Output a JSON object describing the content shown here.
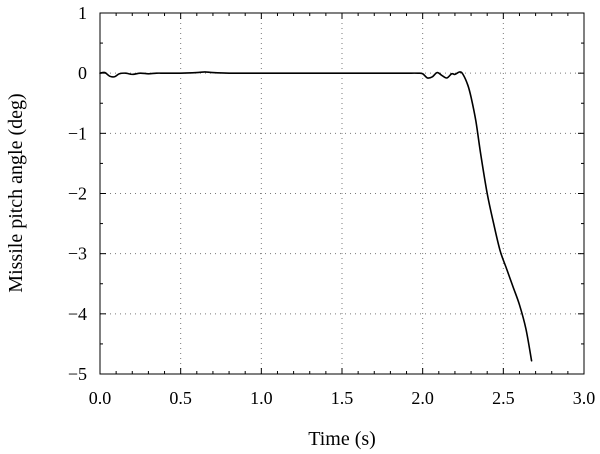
{
  "chart_data": {
    "type": "line",
    "title": "",
    "xlabel": "Time (s)",
    "ylabel": "Missile pitch angle (deg)",
    "xlim": [
      0.0,
      3.0
    ],
    "ylim": [
      -5,
      1
    ],
    "x_ticks": [
      0.0,
      0.5,
      1.0,
      1.5,
      2.0,
      2.5,
      3.0
    ],
    "x_tick_labels": [
      "0.0",
      "0.5",
      "1.0",
      "1.5",
      "2.0",
      "2.5",
      "3.0"
    ],
    "y_ticks": [
      1,
      0,
      -1,
      -2,
      -3,
      -4,
      -5
    ],
    "y_tick_labels": [
      "1",
      "0",
      "−1",
      "−2",
      "−3",
      "−4",
      "−5"
    ],
    "grid": true,
    "colors": {
      "series": "#000000",
      "grid": "#7a7a7a"
    },
    "series": [
      {
        "x": [
          0.0,
          0.03,
          0.06,
          0.09,
          0.12,
          0.16,
          0.2,
          0.25,
          0.3,
          0.35,
          0.4,
          0.5,
          0.6,
          0.65,
          0.7,
          0.8,
          0.9,
          1.0,
          1.2,
          1.4,
          1.5,
          1.6,
          1.8,
          1.9,
          1.97,
          2.0,
          2.03,
          2.06,
          2.09,
          2.12,
          2.15,
          2.18,
          2.2,
          2.23,
          2.25,
          2.28,
          2.3,
          2.33,
          2.36,
          2.4,
          2.44,
          2.48,
          2.52,
          2.56,
          2.6,
          2.64,
          2.675
        ],
        "y": [
          0.0,
          0.01,
          -0.05,
          -0.06,
          -0.01,
          0.0,
          -0.02,
          0.0,
          -0.01,
          0.0,
          0.0,
          0.0,
          0.01,
          0.02,
          0.01,
          0.0,
          0.0,
          0.0,
          0.0,
          0.0,
          0.0,
          0.0,
          0.0,
          0.0,
          0.0,
          -0.01,
          -0.08,
          -0.06,
          0.01,
          -0.04,
          -0.08,
          -0.01,
          -0.02,
          0.02,
          -0.02,
          -0.2,
          -0.4,
          -0.8,
          -1.35,
          -2.0,
          -2.5,
          -2.95,
          -3.25,
          -3.55,
          -3.85,
          -4.25,
          -4.78
        ]
      }
    ]
  }
}
